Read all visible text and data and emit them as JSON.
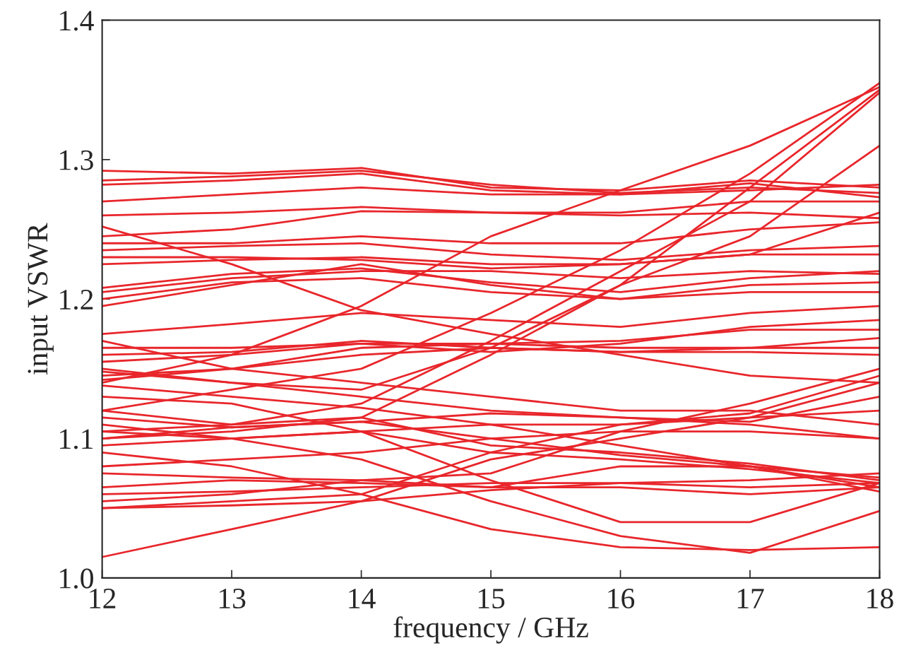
{
  "chart_data": {
    "type": "line",
    "xlabel": "frequency / GHz",
    "ylabel": "input VSWR",
    "x": [
      12,
      13,
      14,
      15,
      16,
      17,
      18
    ],
    "xlim": [
      12,
      18
    ],
    "ylim": [
      1.0,
      1.4
    ],
    "xticks": [
      12,
      13,
      14,
      15,
      16,
      17,
      18
    ],
    "yticks": [
      {
        "value": 1.0,
        "label": "1.0"
      },
      {
        "value": 1.1,
        "label": "1.1"
      },
      {
        "value": 1.2,
        "label": "1.2"
      },
      {
        "value": 1.3,
        "label": "1.3"
      },
      {
        "value": 1.4,
        "label": "1.4"
      }
    ],
    "grid": false,
    "legend": false,
    "marker": "none",
    "line_style": "solid",
    "series": [
      {
        "color": "#e8262b",
        "values": [
          1.292,
          1.29,
          1.294,
          1.28,
          1.278,
          1.285,
          1.28
        ]
      },
      {
        "color": "#e8262b",
        "values": [
          1.285,
          1.288,
          1.292,
          1.282,
          1.276,
          1.28,
          1.276
        ]
      },
      {
        "color": "#e8262b",
        "values": [
          1.282,
          1.285,
          1.29,
          1.278,
          1.275,
          1.283,
          1.273
        ]
      },
      {
        "color": "#e8262b",
        "values": [
          1.27,
          1.275,
          1.28,
          1.275,
          1.275,
          1.278,
          1.282
        ]
      },
      {
        "color": "#e8262b",
        "values": [
          1.26,
          1.262,
          1.266,
          1.262,
          1.26,
          1.262,
          1.258
        ]
      },
      {
        "color": "#e8262b",
        "values": [
          1.245,
          1.25,
          1.263,
          1.262,
          1.262,
          1.27,
          1.27
        ]
      },
      {
        "color": "#e8262b",
        "values": [
          1.252,
          1.225,
          1.192,
          1.175,
          1.16,
          1.145,
          1.14
        ]
      },
      {
        "color": "#e8262b",
        "values": [
          1.1,
          1.105,
          1.115,
          1.16,
          1.21,
          1.28,
          1.35
        ]
      },
      {
        "color": "#e8262b",
        "values": [
          1.105,
          1.11,
          1.125,
          1.17,
          1.22,
          1.27,
          1.348
        ]
      },
      {
        "color": "#e8262b",
        "values": [
          1.12,
          1.135,
          1.15,
          1.19,
          1.235,
          1.29,
          1.355
        ]
      },
      {
        "color": "#e8262b",
        "values": [
          1.14,
          1.16,
          1.195,
          1.245,
          1.278,
          1.31,
          1.352
        ]
      },
      {
        "color": "#e8262b",
        "values": [
          1.15,
          1.14,
          1.135,
          1.165,
          1.21,
          1.245,
          1.31
        ]
      },
      {
        "color": "#e8262b",
        "values": [
          1.235,
          1.238,
          1.24,
          1.232,
          1.228,
          1.235,
          1.238
        ]
      },
      {
        "color": "#e8262b",
        "values": [
          1.23,
          1.23,
          1.228,
          1.222,
          1.225,
          1.232,
          1.232
        ]
      },
      {
        "color": "#e8262b",
        "values": [
          1.225,
          1.228,
          1.23,
          1.225,
          1.225,
          1.232,
          1.262
        ]
      },
      {
        "color": "#e8262b",
        "values": [
          1.24,
          1.24,
          1.245,
          1.24,
          1.24,
          1.25,
          1.255
        ]
      },
      {
        "color": "#e8262b",
        "values": [
          1.205,
          1.215,
          1.22,
          1.22,
          1.215,
          1.22,
          1.218
        ]
      },
      {
        "color": "#e8262b",
        "values": [
          1.2,
          1.212,
          1.215,
          1.205,
          1.2,
          1.21,
          1.212
        ]
      },
      {
        "color": "#e8262b",
        "values": [
          1.208,
          1.218,
          1.222,
          1.212,
          1.205,
          1.215,
          1.22
        ]
      },
      {
        "color": "#e8262b",
        "values": [
          1.195,
          1.21,
          1.225,
          1.21,
          1.2,
          1.205,
          1.205
        ]
      },
      {
        "color": "#e8262b",
        "values": [
          1.175,
          1.182,
          1.19,
          1.185,
          1.18,
          1.19,
          1.195
        ]
      },
      {
        "color": "#e8262b",
        "values": [
          1.165,
          1.165,
          1.168,
          1.168,
          1.165,
          1.165,
          1.165
        ]
      },
      {
        "color": "#e8262b",
        "values": [
          1.16,
          1.162,
          1.17,
          1.165,
          1.162,
          1.162,
          1.16
        ]
      },
      {
        "color": "#e8262b",
        "values": [
          1.155,
          1.16,
          1.168,
          1.162,
          1.168,
          1.18,
          1.185
        ]
      },
      {
        "color": "#e8262b",
        "values": [
          1.145,
          1.15,
          1.165,
          1.168,
          1.17,
          1.178,
          1.178
        ]
      },
      {
        "color": "#e8262b",
        "values": [
          1.142,
          1.15,
          1.16,
          1.165,
          1.162,
          1.165,
          1.172
        ]
      },
      {
        "color": "#e8262b",
        "values": [
          1.17,
          1.15,
          1.14,
          1.13,
          1.12,
          1.12,
          1.11
        ]
      },
      {
        "color": "#e8262b",
        "values": [
          1.148,
          1.14,
          1.13,
          1.12,
          1.115,
          1.11,
          1.1
        ]
      },
      {
        "color": "#e8262b",
        "values": [
          1.138,
          1.13,
          1.122,
          1.11,
          1.095,
          1.08,
          1.062
        ]
      },
      {
        "color": "#e8262b",
        "values": [
          1.12,
          1.11,
          1.115,
          1.095,
          1.09,
          1.082,
          1.07
        ]
      },
      {
        "color": "#e8262b",
        "values": [
          1.115,
          1.108,
          1.112,
          1.1,
          1.088,
          1.08,
          1.065
        ]
      },
      {
        "color": "#e8262b",
        "values": [
          1.105,
          1.1,
          1.105,
          1.09,
          1.085,
          1.078,
          1.068
        ]
      },
      {
        "color": "#e8262b",
        "values": [
          1.13,
          1.125,
          1.105,
          1.07,
          1.04,
          1.04,
          1.068
        ]
      },
      {
        "color": "#e8262b",
        "values": [
          1.11,
          1.1,
          1.085,
          1.055,
          1.03,
          1.018,
          1.048
        ]
      },
      {
        "color": "#e8262b",
        "values": [
          1.09,
          1.08,
          1.06,
          1.035,
          1.022,
          1.02,
          1.022
        ]
      },
      {
        "color": "#e8262b",
        "values": [
          1.015,
          1.035,
          1.055,
          1.085,
          1.1,
          1.115,
          1.14
        ]
      },
      {
        "color": "#e8262b",
        "values": [
          1.05,
          1.055,
          1.06,
          1.09,
          1.11,
          1.118,
          1.145
        ]
      },
      {
        "color": "#e8262b",
        "values": [
          1.055,
          1.06,
          1.07,
          1.075,
          1.105,
          1.125,
          1.15
        ]
      },
      {
        "color": "#e8262b",
        "values": [
          1.065,
          1.07,
          1.068,
          1.065,
          1.065,
          1.06,
          1.065
        ]
      },
      {
        "color": "#e8262b",
        "values": [
          1.05,
          1.052,
          1.055,
          1.063,
          1.068,
          1.07,
          1.075
        ]
      },
      {
        "color": "#e8262b",
        "values": [
          1.06,
          1.062,
          1.065,
          1.068,
          1.068,
          1.065,
          1.068
        ]
      },
      {
        "color": "#e8262b",
        "values": [
          1.075,
          1.072,
          1.07,
          1.065,
          1.08,
          1.08,
          1.072
        ]
      },
      {
        "color": "#e8262b",
        "values": [
          1.08,
          1.085,
          1.09,
          1.1,
          1.105,
          1.105,
          1.1
        ]
      },
      {
        "color": "#e8262b",
        "values": [
          1.095,
          1.1,
          1.105,
          1.11,
          1.11,
          1.115,
          1.12
        ]
      },
      {
        "color": "#e8262b",
        "values": [
          1.1,
          1.108,
          1.112,
          1.118,
          1.115,
          1.112,
          1.13
        ]
      }
    ]
  }
}
